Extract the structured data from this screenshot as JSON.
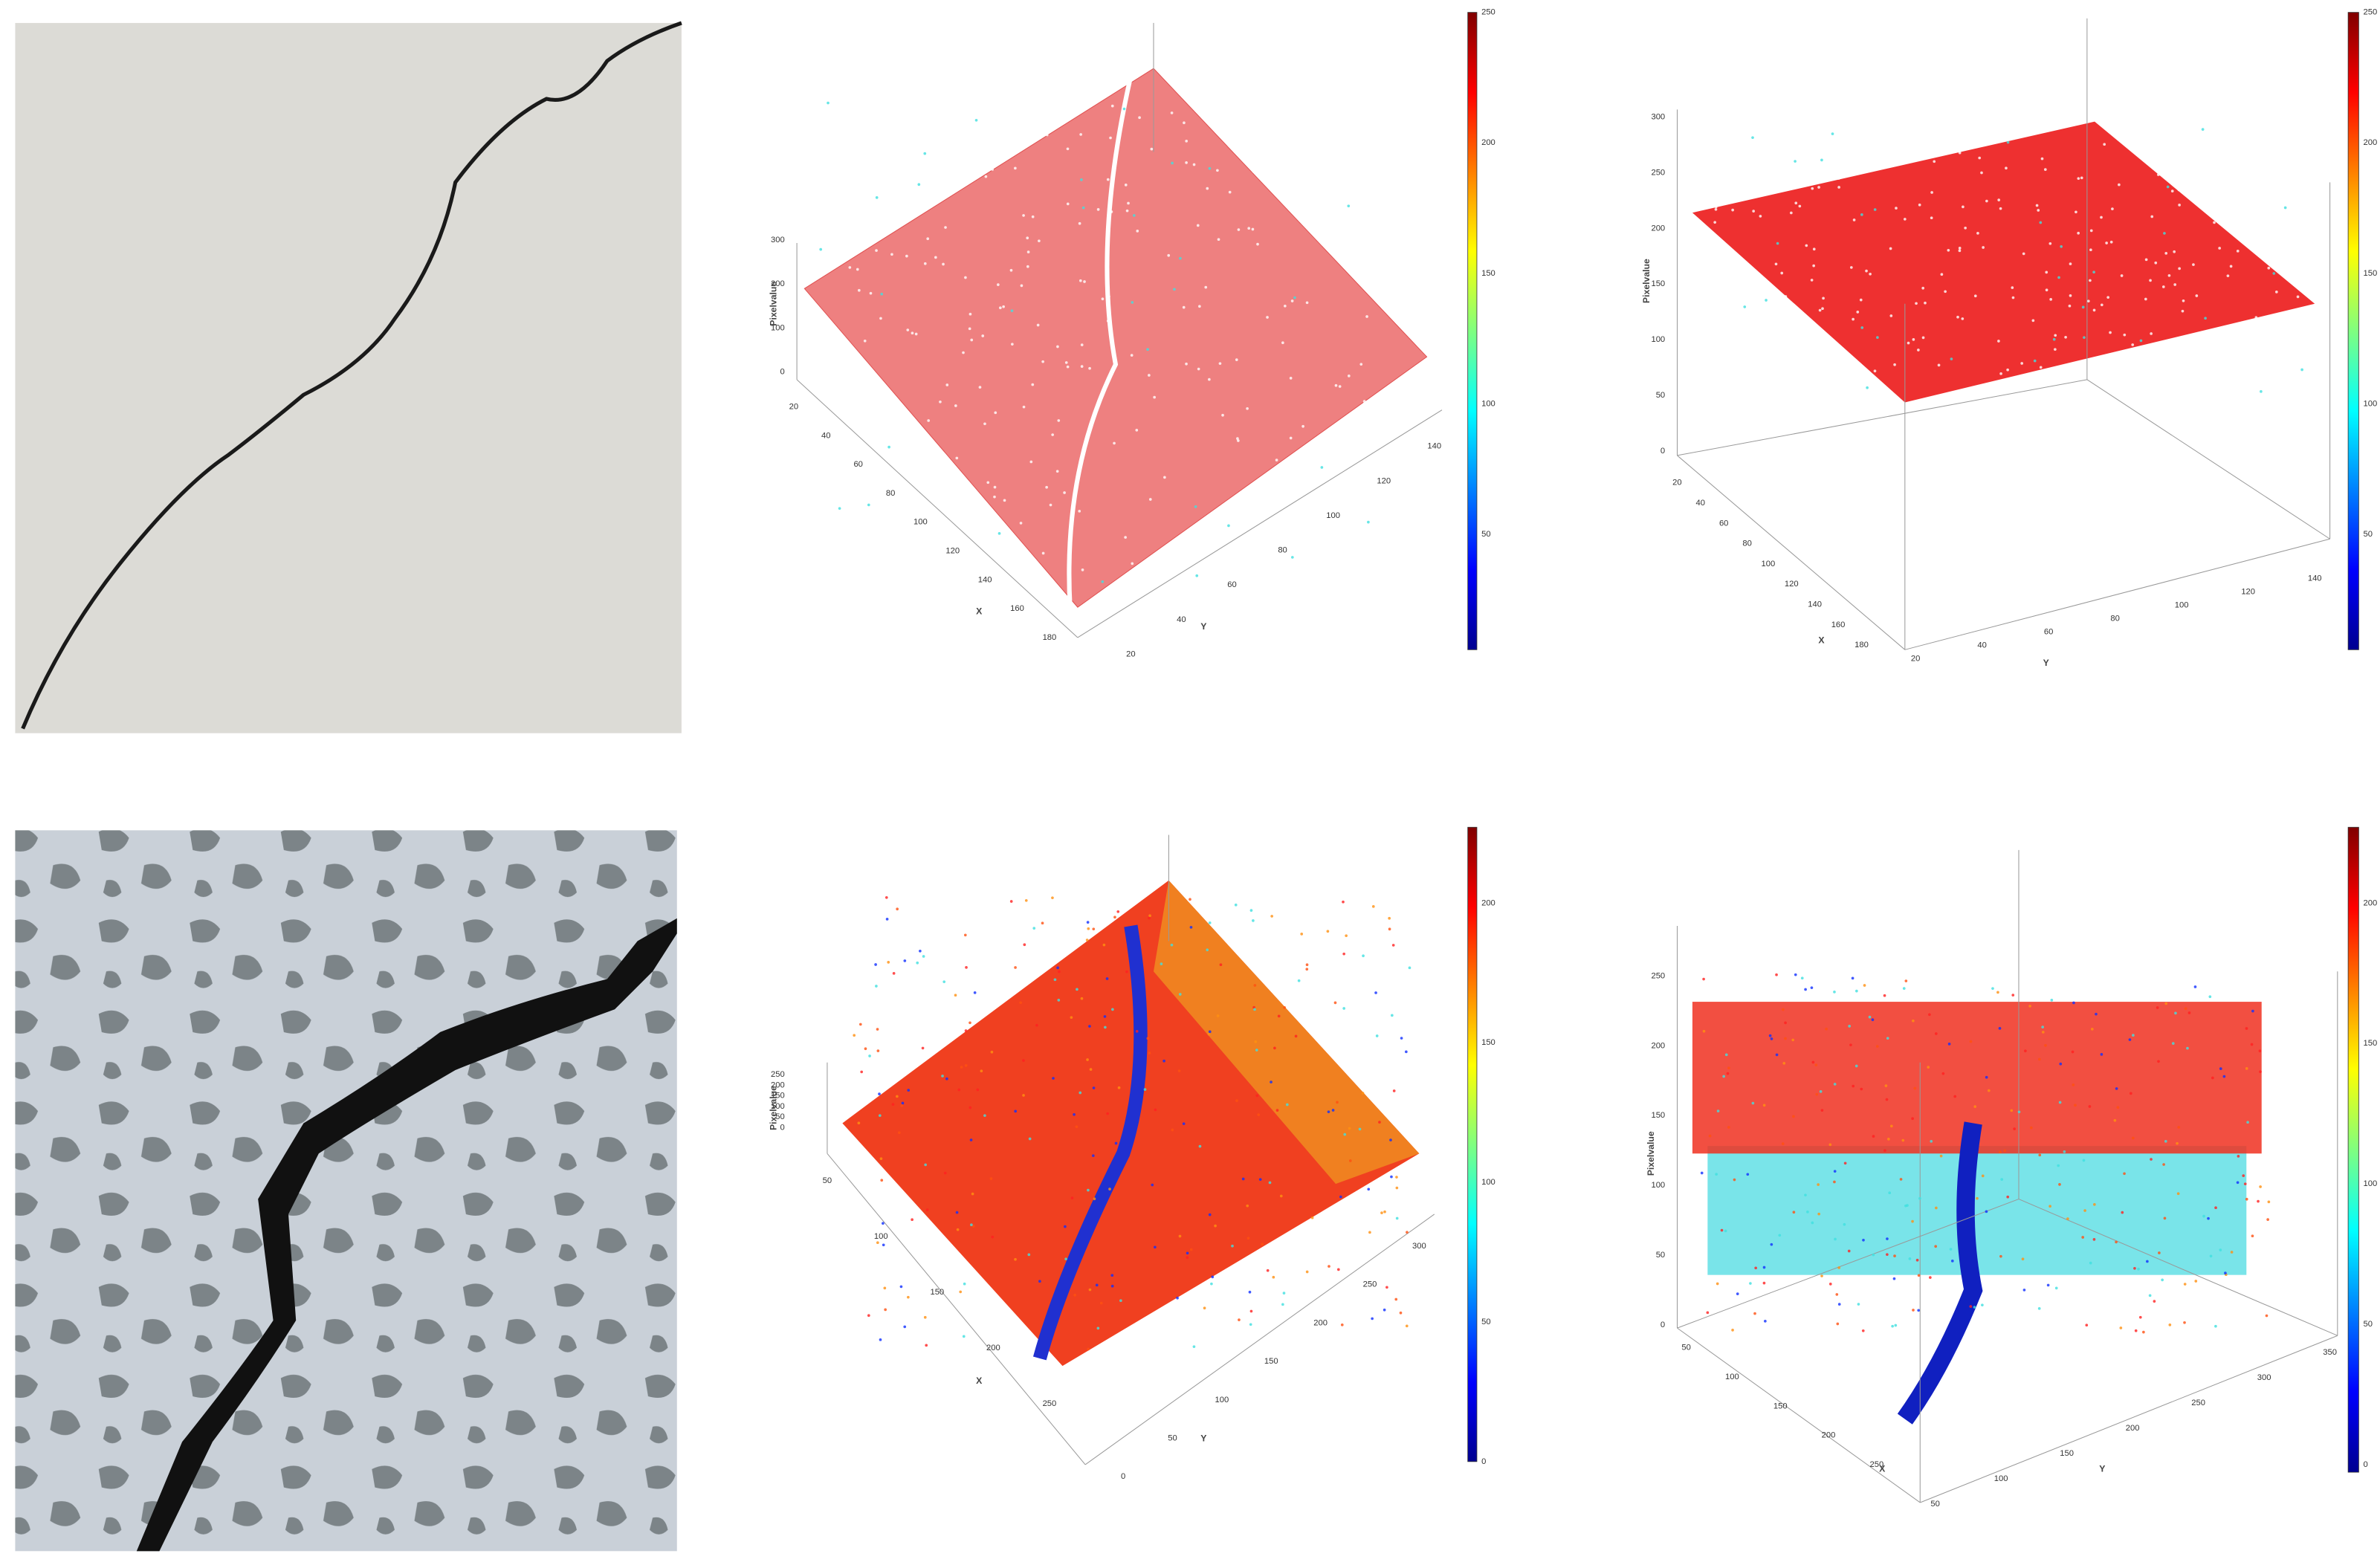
{
  "plots": [
    {
      "z_label": "Pixelvalue",
      "z_ticks": [
        300,
        200,
        100,
        0
      ],
      "x_label": "X",
      "x_ticks": [
        20,
        40,
        60,
        80,
        100,
        120,
        140,
        160,
        180
      ],
      "y_label": "Y",
      "y_ticks": [
        20,
        40,
        60,
        80,
        100,
        120,
        140
      ],
      "colorbar_ticks": [
        250,
        200,
        150,
        100,
        50
      ]
    },
    {
      "z_label": "Pixelvalue",
      "z_ticks": [
        300,
        250,
        200,
        150,
        100,
        50,
        0
      ],
      "x_label": "X",
      "x_ticks": [
        20,
        40,
        60,
        80,
        100,
        120,
        140,
        160,
        180
      ],
      "y_label": "Y",
      "y_ticks": [
        20,
        40,
        60,
        80,
        100,
        120,
        140
      ],
      "colorbar_ticks": [
        250,
        200,
        150,
        100,
        50
      ]
    },
    {
      "z_label": "Pixelvalue",
      "z_ticks": [
        250,
        200,
        150,
        100,
        50,
        0
      ],
      "x_label": "X",
      "x_ticks": [
        50,
        100,
        150,
        200,
        250
      ],
      "y_label": "Y",
      "y_ticks": [
        0,
        50,
        100,
        150,
        200,
        250,
        300
      ],
      "colorbar_ticks": [
        200,
        150,
        100,
        50,
        0
      ]
    },
    {
      "z_label": "Pixelvalue",
      "z_ticks": [
        250,
        200,
        150,
        100,
        50,
        0
      ],
      "x_label": "X",
      "x_ticks": [
        50,
        100,
        150,
        200,
        250
      ],
      "y_label": "Y",
      "y_ticks": [
        50,
        100,
        150,
        200,
        250,
        300,
        350
      ],
      "colorbar_ticks": [
        200,
        150,
        100,
        50,
        0
      ]
    }
  ]
}
